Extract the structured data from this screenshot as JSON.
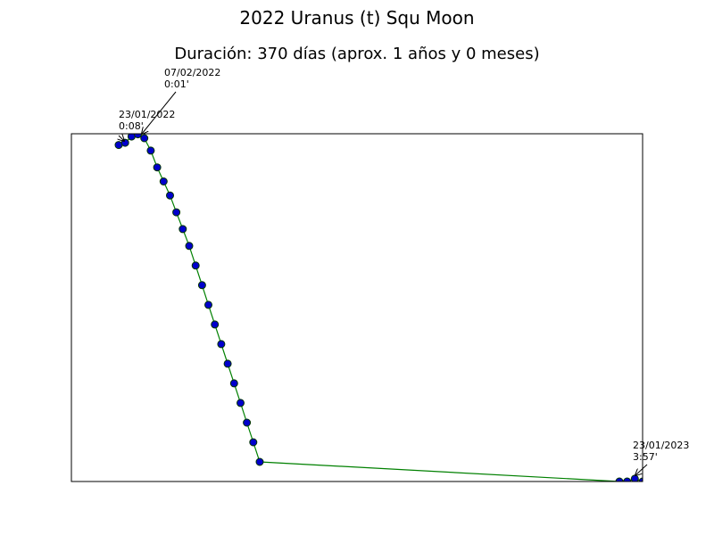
{
  "chart_data": {
    "type": "line",
    "title": "2022 Uranus (t) Squ Moon",
    "subtitle": "Duración: 370 días (aprox. 1 años y 0 meses)",
    "xlabel": "",
    "ylabel": "",
    "grid": false,
    "axes_ticks_visible": false,
    "line_color": "#008000",
    "marker_color": "#0000cc",
    "marker_edge_color": "#003300",
    "series": [
      {
        "x": [
          "2022-01-23",
          "2022-01-25",
          "2022-01-27",
          "2022-01-29",
          "2022-01-31",
          "2022-02-02",
          "2022-02-04",
          "2022-02-06",
          "2022-02-08",
          "2022-02-10",
          "2022-02-12",
          "2022-02-14",
          "2022-02-16",
          "2022-02-18",
          "2022-02-20",
          "2022-02-22",
          "2022-02-24",
          "2022-02-26",
          "2022-02-28",
          "2022-03-02",
          "2022-03-04",
          "2022-03-06",
          "2022-03-08",
          "2023-01-21",
          "2023-01-23",
          "2023-01-25",
          "2023-01-27"
        ],
        "y": [
          0.2,
          0.16,
          0.05,
          0.01,
          0.08,
          0.3,
          0.6,
          0.85,
          1.1,
          1.4,
          1.7,
          2.0,
          2.35,
          2.7,
          3.05,
          3.4,
          3.75,
          4.1,
          4.45,
          4.8,
          5.15,
          5.5,
          5.85,
          6.2,
          6.2,
          6.15,
          6.2
        ]
      }
    ],
    "ylim": [
      0,
      6.2
    ],
    "y_inverted": true,
    "annotations": [
      {
        "date": "23/01/2022",
        "value": "0:08'"
      },
      {
        "date": "07/02/2022",
        "value": "0:01'"
      },
      {
        "date": "23/01/2023",
        "value": "3:57'"
      }
    ]
  }
}
